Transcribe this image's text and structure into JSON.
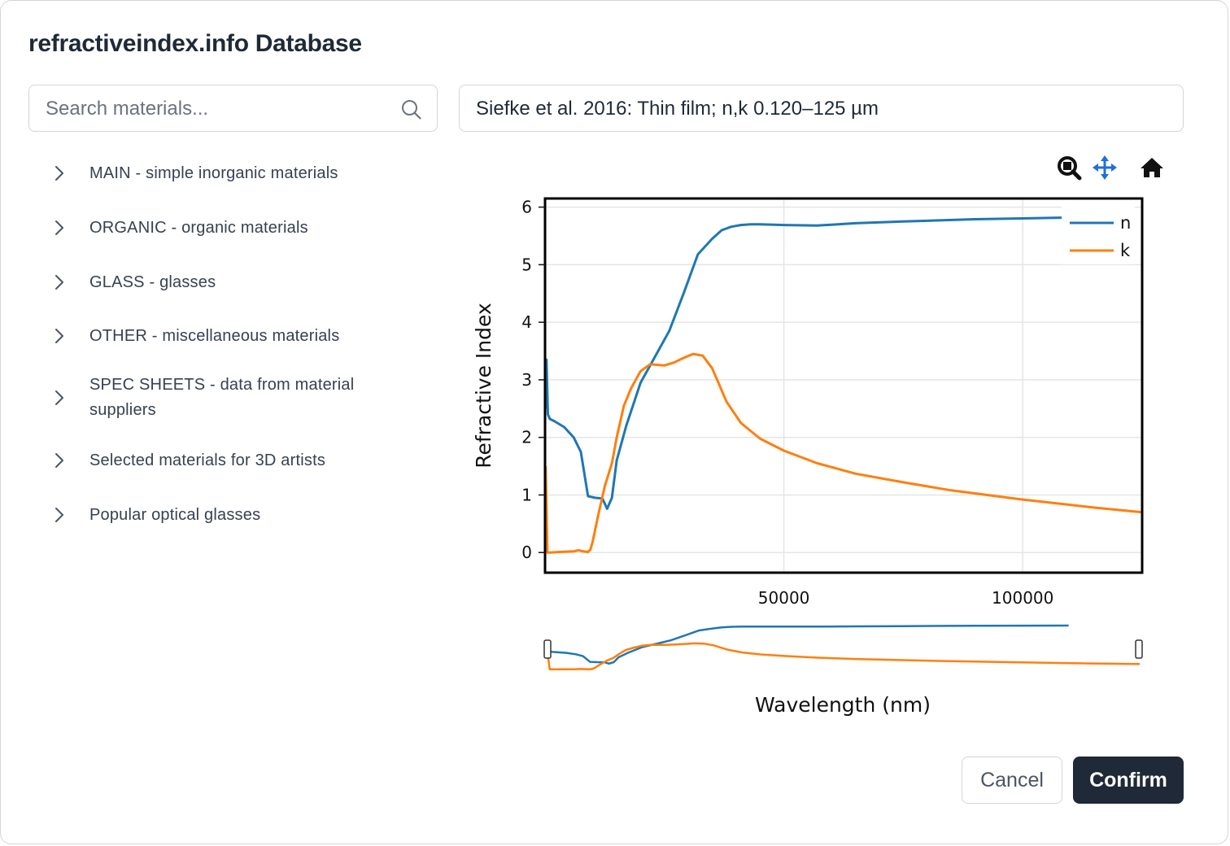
{
  "dialog": {
    "title": "refractiveindex.info Database"
  },
  "search": {
    "placeholder": "Search materials...",
    "value": ""
  },
  "selected_dataset": "Siefke et al. 2016: Thin film; n,k 0.120–125 µm",
  "tree": {
    "items": [
      {
        "label": "MAIN - simple inorganic materials"
      },
      {
        "label": "ORGANIC - organic materials"
      },
      {
        "label": "GLASS - glasses"
      },
      {
        "label": "OTHER - miscellaneous materials"
      },
      {
        "label": "SPEC SHEETS - data from material suppliers"
      },
      {
        "label": "Selected materials for 3D artists"
      },
      {
        "label": "Popular optical glasses"
      }
    ]
  },
  "modebar": {
    "zoom_icon": "zoom-icon",
    "pan_icon": "pan-icon",
    "home_icon": "home-icon",
    "active_color": "#1f6fd8"
  },
  "chart_data": {
    "type": "line",
    "title": "",
    "xlabel": "Wavelength (nm)",
    "ylabel": "Refractive Index",
    "xlim": [
      0,
      125000
    ],
    "ylim": [
      -0.35,
      6.15
    ],
    "xticks": [
      50000,
      100000
    ],
    "xtick_labels": [
      "50000",
      "100000"
    ],
    "yticks": [
      0,
      1,
      2,
      3,
      4,
      5,
      6
    ],
    "ytick_labels": [
      "0",
      "1",
      "2",
      "3",
      "4",
      "5",
      "6"
    ],
    "grid": true,
    "legend": "top-right",
    "series": [
      {
        "name": "n",
        "color": "#1f77b4",
        "x": [
          120,
          300,
          600,
          1000,
          2000,
          4000,
          6000,
          7500,
          9000,
          10500,
          12000,
          13000,
          14000,
          15000,
          17000,
          20000,
          23000,
          26000,
          29000,
          32000,
          35000,
          37000,
          39000,
          41000,
          43000,
          45000,
          50000,
          57000,
          65000,
          75000,
          90000,
          110000
        ],
        "y": [
          2.5,
          3.35,
          2.4,
          2.32,
          2.28,
          2.18,
          2.0,
          1.75,
          0.98,
          0.95,
          0.94,
          0.76,
          0.95,
          1.6,
          2.2,
          2.95,
          3.4,
          3.85,
          4.5,
          5.18,
          5.45,
          5.6,
          5.66,
          5.69,
          5.7,
          5.7,
          5.69,
          5.68,
          5.72,
          5.75,
          5.79,
          5.82
        ]
      },
      {
        "name": "k",
        "color": "#ff7f0e",
        "x": [
          120,
          250,
          500,
          1000,
          3000,
          6000,
          7000,
          8000,
          9000,
          9500,
          10000,
          11000,
          12500,
          14000,
          15000,
          16500,
          18000,
          20000,
          22000,
          25000,
          27000,
          29000,
          31000,
          33000,
          35000,
          38000,
          41000,
          45000,
          50000,
          57000,
          65000,
          75000,
          85000,
          100000,
          115000,
          125000
        ],
        "y": [
          1.5,
          1.0,
          0.0,
          0.0,
          0.01,
          0.02,
          0.04,
          0.02,
          0.01,
          0.05,
          0.2,
          0.6,
          1.15,
          1.55,
          2.0,
          2.55,
          2.85,
          3.15,
          3.27,
          3.25,
          3.3,
          3.38,
          3.45,
          3.42,
          3.2,
          2.62,
          2.25,
          1.98,
          1.77,
          1.55,
          1.37,
          1.22,
          1.08,
          0.92,
          0.78,
          0.7
        ]
      }
    ],
    "range_slider": {
      "present": true,
      "selected_range": [
        0,
        125000
      ]
    }
  },
  "footer": {
    "cancel_label": "Cancel",
    "confirm_label": "Confirm"
  }
}
